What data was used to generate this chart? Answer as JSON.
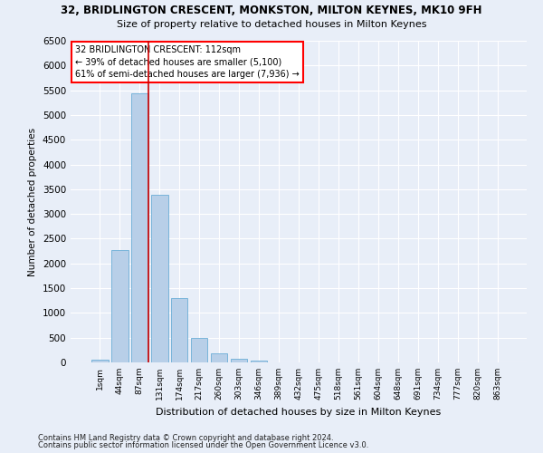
{
  "title": "32, BRIDLINGTON CRESCENT, MONKSTON, MILTON KEYNES, MK10 9FH",
  "subtitle": "Size of property relative to detached houses in Milton Keynes",
  "xlabel": "Distribution of detached houses by size in Milton Keynes",
  "ylabel": "Number of detached properties",
  "footnote1": "Contains HM Land Registry data © Crown copyright and database right 2024.",
  "footnote2": "Contains public sector information licensed under the Open Government Licence v3.0.",
  "annotation_title": "32 BRIDLINGTON CRESCENT: 112sqm",
  "annotation_line1": "← 39% of detached houses are smaller (5,100)",
  "annotation_line2": "61% of semi-detached houses are larger (7,936) →",
  "bar_color": "#b8cfe8",
  "bar_edge_color": "#6baed6",
  "vline_color": "#cc0000",
  "background_color": "#e8eef8",
  "grid_color": "#ffffff",
  "categories": [
    "1sqm",
    "44sqm",
    "87sqm",
    "131sqm",
    "174sqm",
    "217sqm",
    "260sqm",
    "303sqm",
    "346sqm",
    "389sqm",
    "432sqm",
    "475sqm",
    "518sqm",
    "561sqm",
    "604sqm",
    "648sqm",
    "691sqm",
    "734sqm",
    "777sqm",
    "820sqm",
    "863sqm"
  ],
  "values": [
    60,
    2270,
    5430,
    3380,
    1300,
    490,
    175,
    75,
    40,
    0,
    0,
    0,
    0,
    0,
    0,
    0,
    0,
    0,
    0,
    0,
    0
  ],
  "ylim": [
    0,
    6500
  ],
  "yticks": [
    0,
    500,
    1000,
    1500,
    2000,
    2500,
    3000,
    3500,
    4000,
    4500,
    5000,
    5500,
    6000,
    6500
  ],
  "vline_x_index": 2,
  "title_fontsize": 8.5,
  "subtitle_fontsize": 8,
  "xlabel_fontsize": 8,
  "ylabel_fontsize": 7.5,
  "xtick_fontsize": 6.5,
  "ytick_fontsize": 7.5,
  "annot_fontsize": 7,
  "footnote_fontsize": 6
}
